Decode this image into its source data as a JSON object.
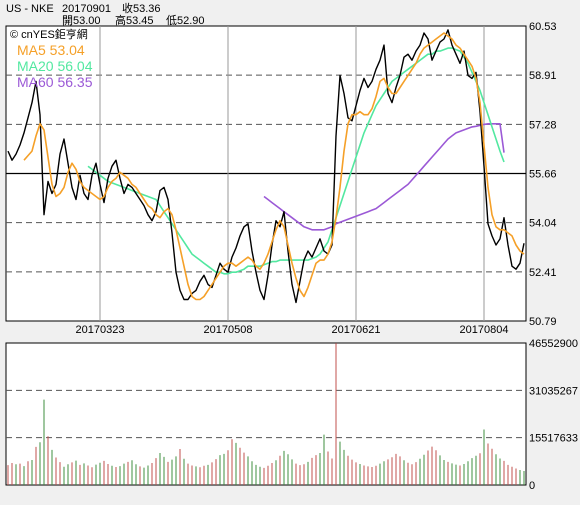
{
  "header": {
    "symbol": "US - NKE",
    "date": "20170901",
    "close_label": "收53.36",
    "open_label": "開53.00",
    "high_label": "高53.45",
    "low_label": "低52.90",
    "source": "© cnYES鉅亨網"
  },
  "legend": [
    {
      "label": "MA5 53.04",
      "color": "#f5a028"
    },
    {
      "label": "MA20 56.04",
      "color": "#52e8a0"
    },
    {
      "label": "MA60 56.35",
      "color": "#9b59d6"
    }
  ],
  "colors": {
    "background": "#f0f0f0",
    "price": "#000000",
    "ma5": "#f5a028",
    "ma20": "#52e8a0",
    "ma60": "#9b59d6",
    "volume_up": "#c0504d",
    "volume_down": "#3f8f3f",
    "grid": "#808080"
  },
  "chart_data": [
    {
      "type": "line",
      "x_ticks": [
        "20170323",
        "20170508",
        "20170621",
        "20170804"
      ],
      "x_tick_index": [
        23,
        55,
        87,
        119
      ],
      "y_ticks": [
        "60.53",
        "58.91",
        "57.28",
        "55.66",
        "54.04",
        "52.41",
        "50.79"
      ],
      "ylim": [
        50.79,
        60.53
      ],
      "reference_line": 55.66,
      "series": [
        {
          "name": "MA5",
          "key": "ma5",
          "values": [
            null,
            null,
            null,
            null,
            56.1,
            56.25,
            56.4,
            56.9,
            57.3,
            57.1,
            56.2,
            55.3,
            54.9,
            55.0,
            55.2,
            55.7,
            56.0,
            55.8,
            55.4,
            55.2,
            55.1,
            55.0,
            54.9,
            54.8,
            54.9,
            55.2,
            55.4,
            55.5,
            55.7,
            55.6,
            55.5,
            55.3,
            55.2,
            55.0,
            54.8,
            54.6,
            54.5,
            54.3,
            54.2,
            54.4,
            54.5,
            54.3,
            53.8,
            53.2,
            52.6,
            52.0,
            51.6,
            51.5,
            51.5,
            51.6,
            51.8,
            52.0,
            52.2,
            52.4,
            52.6,
            52.7,
            52.7,
            52.6,
            52.7,
            52.8,
            52.9,
            52.8,
            52.6,
            52.5,
            52.7,
            53.0,
            53.4,
            53.8,
            54.1,
            53.9,
            53.3,
            52.7,
            52.2,
            51.8,
            51.6,
            51.9,
            52.3,
            52.7,
            52.8,
            52.8,
            53.0,
            53.4,
            54.2,
            55.2,
            56.4,
            57.3,
            57.6,
            57.6,
            57.7,
            57.6,
            57.6,
            57.8,
            58.2,
            58.7,
            58.8,
            58.5,
            58.3,
            58.3,
            58.5,
            58.7,
            58.9,
            59.1,
            59.3,
            59.6,
            59.8,
            59.9,
            60.0,
            60.1,
            60.2,
            60.3,
            60.2,
            60.1,
            59.9,
            59.8,
            59.6,
            59.4,
            59.2,
            58.8,
            58.0,
            56.6,
            55.2,
            54.3,
            53.9,
            53.8,
            53.8,
            53.7,
            53.6,
            53.3,
            53.1,
            53.0
          ]
        },
        {
          "name": "MA20",
          "key": "ma20",
          "values": [
            null,
            null,
            null,
            null,
            null,
            null,
            null,
            null,
            null,
            null,
            null,
            null,
            null,
            null,
            null,
            null,
            null,
            null,
            null,
            null,
            55.9,
            55.8,
            55.7,
            55.6,
            55.5,
            55.4,
            55.35,
            55.3,
            55.25,
            55.2,
            55.15,
            55.1,
            55.05,
            55.0,
            54.95,
            54.9,
            54.85,
            54.8,
            54.6,
            54.4,
            54.2,
            54.0,
            53.8,
            53.6,
            53.4,
            53.2,
            53.0,
            52.9,
            52.8,
            52.7,
            52.6,
            52.5,
            52.4,
            52.4,
            52.35,
            52.35,
            52.4,
            52.4,
            52.45,
            52.5,
            52.6,
            52.6,
            52.6,
            52.6,
            52.65,
            52.7,
            52.75,
            52.75,
            52.8,
            52.8,
            52.8,
            52.8,
            52.8,
            52.8,
            52.8,
            52.8,
            52.85,
            52.9,
            53.0,
            53.2,
            53.4,
            53.8,
            54.2,
            54.6,
            55.0,
            55.4,
            55.8,
            56.2,
            56.6,
            57.0,
            57.3,
            57.6,
            57.9,
            58.1,
            58.3,
            58.5,
            58.7,
            58.8,
            58.9,
            59.0,
            59.1,
            59.2,
            59.3,
            59.4,
            59.5,
            59.6,
            59.6,
            59.7,
            59.7,
            59.75,
            59.8,
            59.8,
            59.75,
            59.7,
            59.5,
            59.3,
            59.0,
            58.7,
            58.4,
            58.0,
            57.6,
            57.2,
            56.8,
            56.4,
            56.04
          ]
        },
        {
          "name": "MA60",
          "key": "ma60",
          "values": [
            null,
            null,
            null,
            null,
            null,
            null,
            null,
            null,
            null,
            null,
            null,
            null,
            null,
            null,
            null,
            null,
            null,
            null,
            null,
            null,
            null,
            null,
            null,
            null,
            null,
            null,
            null,
            null,
            null,
            null,
            null,
            null,
            null,
            null,
            null,
            null,
            null,
            null,
            null,
            null,
            null,
            null,
            null,
            null,
            null,
            null,
            null,
            null,
            null,
            null,
            null,
            null,
            null,
            null,
            null,
            null,
            null,
            null,
            null,
            null,
            null,
            null,
            null,
            null,
            54.9,
            54.8,
            54.7,
            54.6,
            54.5,
            54.4,
            54.3,
            54.2,
            54.1,
            54.0,
            53.9,
            53.85,
            53.8,
            53.8,
            53.8,
            53.8,
            53.85,
            53.9,
            54.0,
            54.05,
            54.1,
            54.15,
            54.2,
            54.25,
            54.3,
            54.35,
            54.4,
            54.45,
            54.5,
            54.6,
            54.7,
            54.8,
            54.9,
            55.0,
            55.1,
            55.2,
            55.3,
            55.45,
            55.6,
            55.75,
            55.9,
            56.05,
            56.2,
            56.35,
            56.5,
            56.65,
            56.8,
            56.9,
            57.0,
            57.05,
            57.1,
            57.15,
            57.2,
            57.22,
            57.25,
            57.28,
            57.3,
            57.3,
            57.3,
            57.3,
            56.35
          ]
        },
        {
          "name": "Price",
          "key": "price",
          "values": [
            56.4,
            56.1,
            56.3,
            56.6,
            57.0,
            57.5,
            58.0,
            58.7,
            57.6,
            54.3,
            55.4,
            55.0,
            55.3,
            56.3,
            56.8,
            56.0,
            55.2,
            54.8,
            55.6,
            55.0,
            54.8,
            55.6,
            56.0,
            55.3,
            54.7,
            55.5,
            55.9,
            56.1,
            55.5,
            55.0,
            55.3,
            55.2,
            55.0,
            54.8,
            54.6,
            54.3,
            54.1,
            54.4,
            55.1,
            55.2,
            54.8,
            53.7,
            52.4,
            51.8,
            51.5,
            51.5,
            51.7,
            51.8,
            52.1,
            52.3,
            52.0,
            51.9,
            52.3,
            52.7,
            52.5,
            52.4,
            52.9,
            53.2,
            53.6,
            53.9,
            54.0,
            53.1,
            52.4,
            51.8,
            51.5,
            52.3,
            53.3,
            54.1,
            53.9,
            54.4,
            53.1,
            52.0,
            51.4,
            52.1,
            52.8,
            53.1,
            52.9,
            53.2,
            53.5,
            53.1,
            53.0,
            53.3,
            56.9,
            58.9,
            58.3,
            57.5,
            57.4,
            57.9,
            58.4,
            58.8,
            58.5,
            58.7,
            59.1,
            59.4,
            59.9,
            58.3,
            58.0,
            58.5,
            58.9,
            59.5,
            59.6,
            59.4,
            59.7,
            59.9,
            60.3,
            60.1,
            59.4,
            59.7,
            60.0,
            60.1,
            60.4,
            59.9,
            59.6,
            59.3,
            59.7,
            58.9,
            58.8,
            59.0,
            57.7,
            55.9,
            54.0,
            53.6,
            53.3,
            53.5,
            54.2,
            53.3,
            52.6,
            52.5,
            52.7,
            53.36
          ]
        }
      ]
    },
    {
      "type": "bar",
      "y_ticks": [
        "46552900",
        "31035267",
        "15517633",
        "0"
      ],
      "ylim": [
        0,
        46552900
      ],
      "values": [
        6.5,
        7.2,
        6.8,
        7.0,
        6.2,
        7.8,
        8.2,
        12.5,
        14.0,
        28.0,
        16.0,
        11.5,
        9.0,
        7.5,
        6.0,
        6.8,
        7.4,
        8.0,
        6.6,
        7.1,
        6.4,
        5.8,
        6.7,
        7.3,
        7.9,
        6.9,
        6.3,
        5.9,
        6.2,
        7.0,
        7.6,
        8.1,
        6.8,
        6.1,
        5.7,
        6.4,
        7.2,
        8.8,
        10.5,
        9.2,
        7.6,
        8.3,
        9.4,
        11.8,
        8.6,
        7.0,
        6.4,
        6.1,
        5.8,
        6.3,
        6.6,
        7.4,
        8.5,
        9.8,
        10.2,
        11.4,
        15.0,
        13.8,
        12.2,
        10.6,
        9.4,
        7.8,
        6.6,
        6.0,
        5.6,
        6.3,
        7.2,
        8.1,
        9.6,
        11.2,
        10.1,
        8.4,
        7.0,
        6.5,
        6.8,
        7.6,
        8.9,
        9.8,
        10.5,
        16.5,
        11.0,
        8.7,
        46.5,
        14.2,
        11.5,
        9.6,
        8.3,
        7.4,
        6.9,
        6.4,
        6.1,
        5.9,
        6.3,
        7.0,
        7.8,
        8.4,
        9.1,
        10.2,
        9.4,
        8.1,
        7.3,
        6.8,
        7.5,
        8.6,
        9.9,
        11.3,
        12.6,
        11.4,
        9.7,
        8.2,
        7.6,
        7.1,
        6.7,
        6.4,
        6.9,
        7.8,
        8.8,
        9.6,
        10.4,
        18.2,
        13.6,
        11.9,
        10.1,
        8.7,
        7.9,
        6.6,
        6.0,
        5.4,
        4.9,
        4.6
      ],
      "up": [
        1,
        1,
        0,
        1,
        0,
        1,
        0,
        1,
        0,
        0,
        1,
        0,
        1,
        1,
        0,
        0,
        1,
        0,
        1,
        0,
        1,
        1,
        0,
        0,
        1,
        1,
        0,
        1,
        0,
        0,
        1,
        0,
        0,
        1,
        0,
        0,
        1,
        1,
        0,
        0,
        1,
        0,
        0,
        1,
        0,
        1,
        1,
        0,
        1,
        1,
        0,
        1,
        1,
        0,
        0,
        1,
        1,
        0,
        1,
        1,
        0,
        0,
        0,
        0,
        1,
        1,
        1,
        0,
        1,
        0,
        0,
        0,
        1,
        1,
        1,
        0,
        1,
        1,
        0,
        0,
        1,
        1,
        1,
        0,
        0,
        1,
        1,
        1,
        0,
        1,
        1,
        1,
        1,
        0,
        0,
        1,
        1,
        1,
        1,
        0,
        1,
        1,
        1,
        0,
        0,
        1,
        1,
        1,
        0,
        0,
        1,
        0,
        0,
        1,
        0,
        0,
        0,
        0,
        1,
        0,
        1,
        1,
        0,
        0,
        1,
        1,
        1,
        1
      ],
      "reference_lines": [
        15517633,
        31035267
      ]
    }
  ]
}
